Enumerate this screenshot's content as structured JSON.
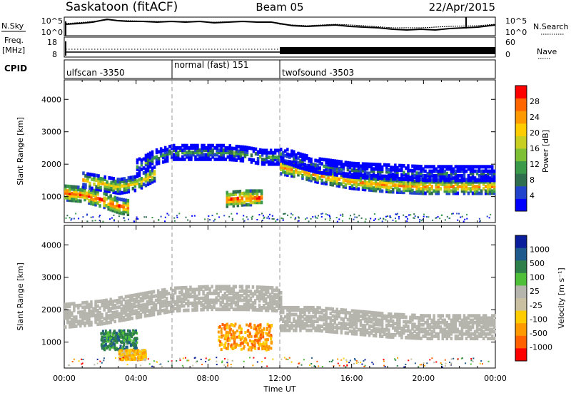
{
  "header": {
    "station": "Saskatoon (fitACF)",
    "beam": "Beam 05",
    "date": "22/Apr/2015"
  },
  "panels": {
    "nsky_label": "N.Sky",
    "nsky_ticks": [
      "10^5",
      "10^0"
    ],
    "nsearch_label": "N.Search",
    "nsearch_ticks": [
      "10^5",
      "10^0"
    ],
    "freq_label": "Freq.",
    "freq_unit": "[MHz]",
    "freq_ticks": [
      "18",
      "8"
    ],
    "nave_label": "Nave",
    "nave_ticks": [
      "60",
      "0"
    ],
    "cpid_label": "CPID",
    "cpid_segments": [
      {
        "label": "ulfscan -3350",
        "start": 0,
        "end": 6
      },
      {
        "label": "normal (fast) 151",
        "start": 6,
        "end": 12
      },
      {
        "label": "twofsound -3503",
        "start": 12,
        "end": 24
      }
    ]
  },
  "colors": {
    "power": [
      "#0000ff",
      "#2244cc",
      "#2f6f50",
      "#3a9a4a",
      "#7dbf35",
      "#c8cf20",
      "#ffcc00",
      "#ff9900",
      "#ff6600",
      "#ff0000"
    ],
    "velocity": [
      "#0a1e9b",
      "#1f5a8c",
      "#2f7f4a",
      "#4fbf3a",
      "#b5b5ad",
      "#c8c0a0",
      "#ffcc00",
      "#ff9900",
      "#ff6000",
      "#ff0000"
    ]
  },
  "chart_data": [
    {
      "type": "heatmap",
      "title": "",
      "xlabel": "",
      "ylabel": "Slant Range [km]",
      "x_unit": "hours UT",
      "xlim": [
        0,
        24
      ],
      "ylim": [
        200,
        4600
      ],
      "yticks": [
        1000,
        2000,
        3000,
        4000
      ],
      "colorbar": {
        "label": "Power [dB]",
        "range": [
          0,
          32
        ],
        "ticks": [
          4,
          8,
          12,
          16,
          20,
          24,
          28
        ]
      },
      "backscatter_bands": [
        {
          "hours": [
            0,
            1,
            2,
            3,
            3.5
          ],
          "range_km": [
            1100,
            1050,
            900,
            700,
            650
          ],
          "power_db": 28
        },
        {
          "hours": [
            1,
            2,
            3,
            4,
            5
          ],
          "range_km": [
            1500,
            1400,
            1300,
            1400,
            1700
          ],
          "power_db": 20
        },
        {
          "hours": [
            4,
            5,
            6,
            7,
            8,
            9,
            10,
            11,
            12
          ],
          "range_km": [
            1900,
            2200,
            2350,
            2350,
            2350,
            2350,
            2300,
            2200,
            2200
          ],
          "power_db": 12
        },
        {
          "hours": [
            9,
            10,
            11
          ],
          "range_km": [
            900,
            950,
            950
          ],
          "power_db": 28
        },
        {
          "hours": [
            12,
            13,
            14,
            16,
            18,
            20,
            22,
            24
          ],
          "range_km": [
            1900,
            1800,
            1650,
            1450,
            1350,
            1300,
            1300,
            1300
          ],
          "power_db": 24
        },
        {
          "hours": [
            12,
            13,
            14,
            16,
            18,
            20,
            22,
            24
          ],
          "range_km": [
            2300,
            2100,
            1950,
            1800,
            1750,
            1700,
            1700,
            1700
          ],
          "power_db": 8
        }
      ]
    },
    {
      "type": "heatmap",
      "title": "",
      "xlabel": "Time UT",
      "ylabel": "Slant Range [km]",
      "x_unit": "hours UT",
      "xlim": [
        0,
        24
      ],
      "ylim": [
        200,
        4600
      ],
      "xticks": [
        "00:00",
        "04:00",
        "08:00",
        "12:00",
        "16:00",
        "20:00",
        "00:00"
      ],
      "yticks": [
        1000,
        2000,
        3000,
        4000
      ],
      "colorbar": {
        "label": "Velocity [m s⁻¹]",
        "ticks": [
          "1000",
          "500",
          "100",
          "25",
          "-25",
          "-100",
          "-500",
          "-1000"
        ]
      },
      "ground_scatter": [
        {
          "hours": [
            0,
            2,
            4,
            6,
            8,
            10,
            12
          ],
          "range_km": [
            1800,
            1900,
            2100,
            2300,
            2350,
            2350,
            2300
          ],
          "velocity_ms": 0
        },
        {
          "hours": [
            12,
            14,
            16,
            18,
            20,
            22,
            24
          ],
          "range_km": [
            1700,
            1700,
            1600,
            1500,
            1450,
            1450,
            1450
          ],
          "velocity_ms": 0
        }
      ],
      "flow_regions": [
        {
          "hours": [
            2,
            4
          ],
          "range_km": [
            800,
            1400
          ],
          "velocity_ms": 100
        },
        {
          "hours": [
            3,
            4.5
          ],
          "range_km": [
            500,
            800
          ],
          "velocity_ms": -100
        },
        {
          "hours": [
            8.5,
            11.5
          ],
          "range_km": [
            800,
            1600
          ],
          "velocity_ms": -300
        }
      ]
    }
  ]
}
